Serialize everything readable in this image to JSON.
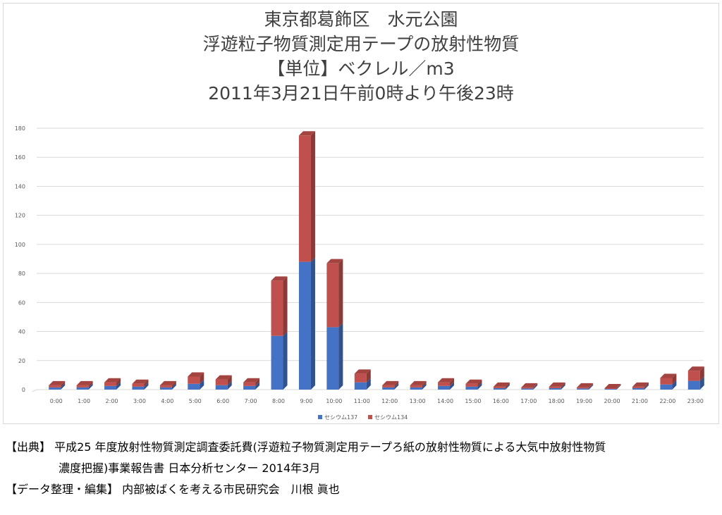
{
  "titles": [
    "東京都葛飾区　水元公園",
    "浮遊粒子物質測定用テープの放射性物質",
    "【単位】ベクレル／m3",
    "2011年3月21日午前0時より午後23時"
  ],
  "colors": {
    "cs137": "#4472c4",
    "cs134": "#c0504d",
    "grid": "#d9d9d9"
  },
  "chart_data": {
    "type": "bar",
    "stacked": true,
    "title": "",
    "ylim": [
      0,
      180
    ],
    "yticks": [
      0,
      20,
      40,
      60,
      80,
      100,
      120,
      140,
      160,
      180
    ],
    "grid": true,
    "legend": "bottom",
    "categories": [
      "0:00",
      "1:00",
      "2:00",
      "3:00",
      "4:00",
      "5:00",
      "6:00",
      "7:00",
      "8:00",
      "9:00",
      "10:00",
      "11:00",
      "12:00",
      "13:00",
      "14:00",
      "15:00",
      "16:00",
      "17:00",
      "18:00",
      "19:00",
      "20:00",
      "21:00",
      "22:00",
      "23:00"
    ],
    "series": [
      {
        "name": "セシウム137",
        "values": [
          1.5,
          1.5,
          2.5,
          2,
          1.5,
          4,
          3,
          2.5,
          37,
          88,
          43,
          5,
          1.5,
          1.5,
          2.5,
          2,
          1,
          0.8,
          1,
          0.8,
          0.5,
          1,
          3.5,
          6
        ]
      },
      {
        "name": "セシウム134",
        "values": [
          1.5,
          1.5,
          2.5,
          2,
          1.5,
          5,
          4,
          2.5,
          38,
          87,
          44,
          6,
          1.5,
          1.5,
          2.5,
          2,
          1,
          0.7,
          1,
          0.7,
          0.5,
          1,
          4.5,
          7
        ]
      }
    ]
  },
  "footer": {
    "source_line1": "【出典】 平成25 年度放射性物質測定調査委託費(浮遊粒子物質測定用テープろ紙の放射性物質による大気中放射性物質",
    "source_line2": "濃度把握)事業報告書 日本分析センター 2014年3月",
    "editor_line": "【データ整理・編集】 内部被ばくを考える市民研究会　川根 眞也"
  }
}
